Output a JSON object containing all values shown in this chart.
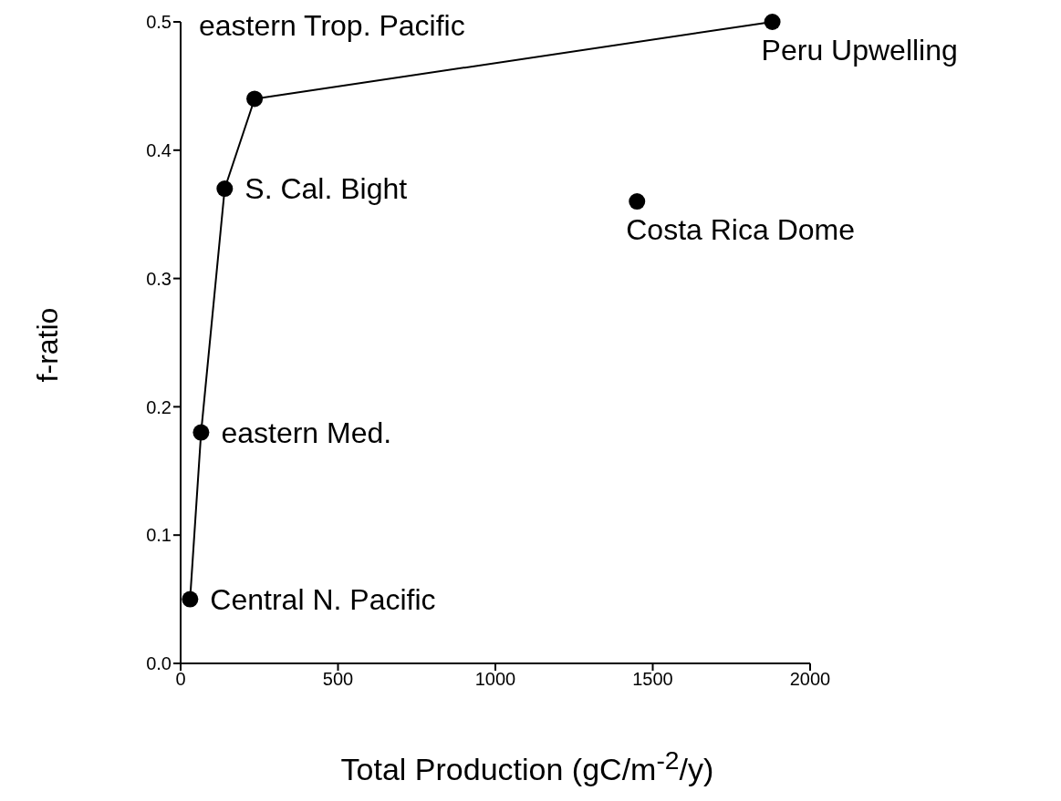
{
  "chart_data": {
    "type": "line",
    "xlabel": "Total Production (gC/m$^{-2}$/y)",
    "ylabel": "f-ratio",
    "series": [
      {
        "color": "#000000",
        "x": [
          30,
          65,
          140,
          235,
          1880
        ],
        "values": [
          0.05,
          0.18,
          0.37,
          0.44,
          0.5
        ]
      },
      {
        "type": "scatter",
        "color": "#000000",
        "x": [
          1450
        ],
        "values": [
          0.36
        ]
      }
    ],
    "xlim": [
      0,
      2000
    ],
    "xticks": [
      0,
      500,
      1000,
      1500,
      2000
    ],
    "ylim": [
      0,
      0.5
    ],
    "yticks": [
      {
        "value": 0,
        "label": "0.0"
      },
      0.1,
      0.2,
      0.3,
      0.4,
      0.5
    ],
    "marker": "circle",
    "line_style": "solid",
    "grid": false,
    "annotations": [
      "eastern Trop. Pacific",
      {
        "text": "Peru Upwelling",
        "x": 1880,
        "y": 0.5
      },
      {
        "text": "S. Cal. Bight",
        "x": 140,
        "y": 0.37
      },
      {
        "text": "Costa Rica Dome",
        "x": 1450,
        "y": 0.36
      },
      {
        "text": "eastern Med.",
        "x": 65,
        "y": 0.18
      },
      {
        "text": "Central N. Pacific",
        "x": 30,
        "y": 0.05
      }
    ]
  }
}
